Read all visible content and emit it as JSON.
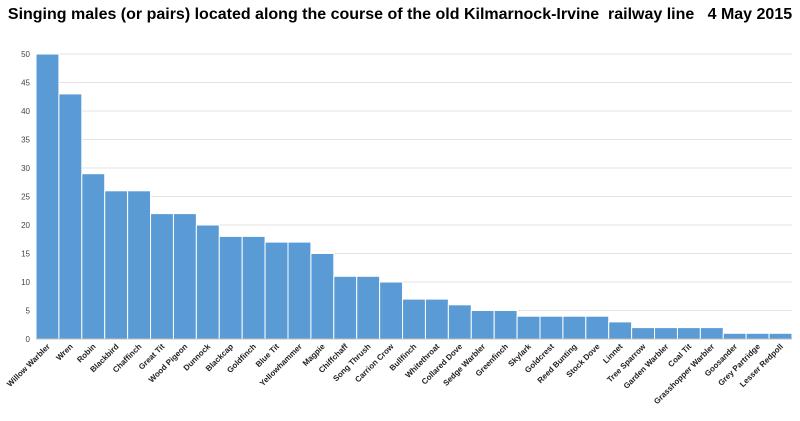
{
  "chart_data": {
    "type": "bar",
    "title": "Singing males (or pairs) located along the course of the old Kilmarnock-Irvine  railway line   4 May 2015",
    "xlabel": "",
    "ylabel": "",
    "ylim": [
      0,
      50
    ],
    "yticks": [
      0,
      5,
      10,
      15,
      20,
      25,
      30,
      35,
      40,
      45,
      50
    ],
    "grid": true,
    "legend": "none",
    "bar_color": "#5b9bd5",
    "categories": [
      "Willow Warbler",
      "Wren",
      "Robin",
      "Blackbird",
      "Chaffinch",
      "Great Tit",
      "Wood Pigeon",
      "Dunnock",
      "Blackcap",
      "Goldfinch",
      "Blue Tit",
      "Yellowhammer",
      "Magpie",
      "Chiffchaff",
      "Song Thrush",
      "Carrion Crow",
      "Bullfinch",
      "Whitethroat",
      "Collared Dove",
      "Sedge Warbler",
      "Greenfinch",
      "Skylark",
      "Goldcrest",
      "Reed Bunting",
      "Stock Dove",
      "Linnet",
      "Tree Sparrow",
      "Garden Warbler",
      "Coal Tit",
      "Grasshopper Warbler",
      "Goosander",
      "Grey Partridge",
      "Lesser Redpoll"
    ],
    "values": [
      50,
      43,
      29,
      26,
      26,
      22,
      22,
      20,
      18,
      18,
      17,
      17,
      15,
      11,
      11,
      10,
      7,
      7,
      6,
      5,
      5,
      4,
      4,
      4,
      4,
      3,
      2,
      2,
      2,
      2,
      1,
      1,
      1
    ]
  }
}
